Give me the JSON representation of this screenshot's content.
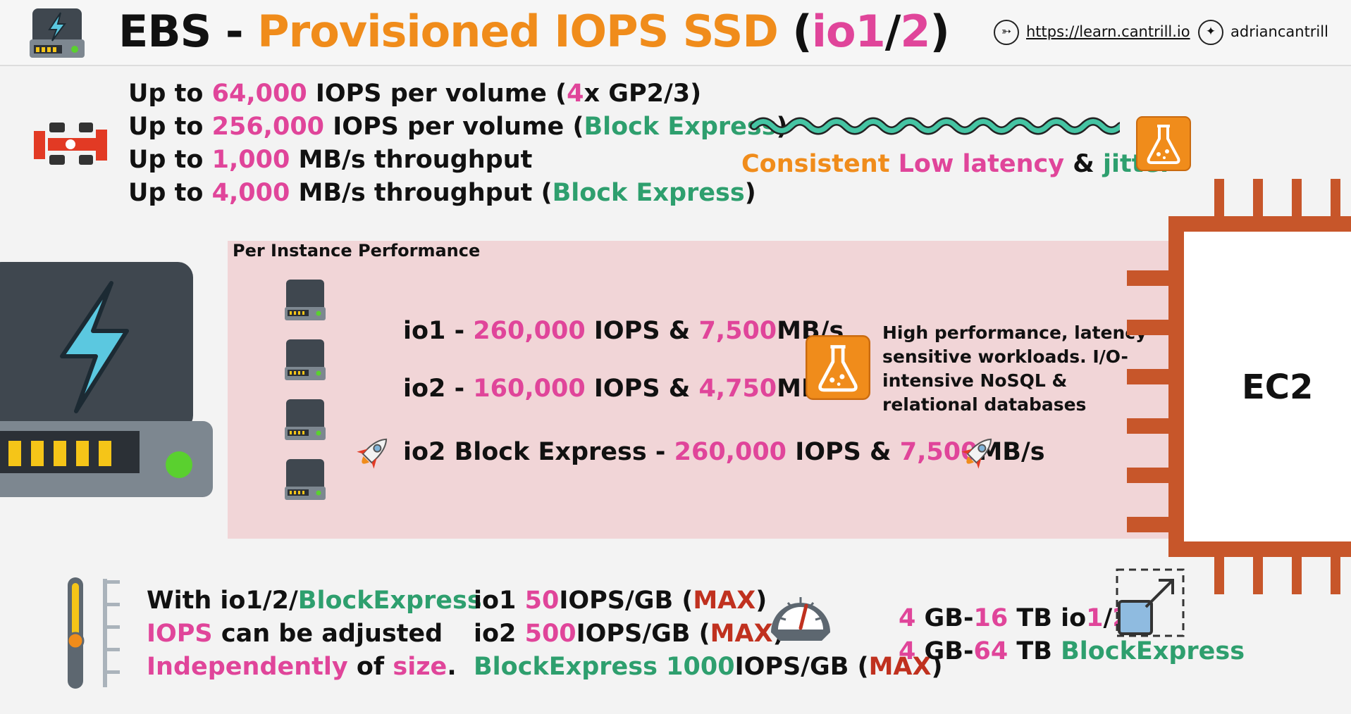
{
  "header": {
    "title": {
      "ebs": "EBS",
      "dash": " - ",
      "main": "Provisioned IOPS SSD",
      "open": " (",
      "io": "io",
      "one": "1",
      "slash": "/",
      "two": "2",
      "close": ")"
    },
    "website": "https://learn.cantrill.io",
    "twitter": "adriancantrill"
  },
  "specs": [
    {
      "a": "Up to ",
      "b": "64,000",
      "c": " IOPS per volume (",
      "d": "4",
      "e": "x GP2/3)"
    },
    {
      "a": "Up to ",
      "b": "256,000",
      "c": " IOPS per volume (",
      "d": "Block Express",
      "e": ")"
    },
    {
      "a": "Up to ",
      "b": "1,000",
      "c": " MB/s throughput",
      "d": "",
      "e": ""
    },
    {
      "a": "Up to ",
      "b": "4,000",
      "c": " MB/s throughput (",
      "d": "Block Express",
      "e": ")"
    }
  ],
  "latency": {
    "a": "Consistent ",
    "b": "Low latency",
    "c": " & ",
    "d": "jitter"
  },
  "panel": {
    "title": "Per Instance Performance",
    "io1": {
      "name": "io1 - ",
      "iops": "260,000",
      "mid": " IOPS & ",
      "mbs": "7,500",
      "unit": "MB/s"
    },
    "io2": {
      "name": "io2 - ",
      "iops": "160,000",
      "mid": " IOPS & ",
      "mbs": "4,750",
      "unit": "MB/s"
    },
    "io2be": {
      "name": "io2 Block Express - ",
      "iops": "260,000",
      "mid": " IOPS & ",
      "mbs": "7,500",
      "unit": "MB/s"
    },
    "description": [
      "High performance, latency",
      "sensitive workloads. I/O-",
      "intensive NoSQL &",
      "relational databases"
    ]
  },
  "ec2_label": "EC2",
  "adjust": {
    "l1a": "With io1/2/",
    "l1b": "BlockExpress",
    "l2a": "IOPS",
    "l2b": " can be adjusted",
    "l3a": "Independently",
    "l3b": " of ",
    "l3c": "size",
    "l3d": "."
  },
  "ratios": [
    {
      "name": "io1 ",
      "num": "50",
      "unit": "IOPS/GB (",
      "max": "MAX",
      "end": ")"
    },
    {
      "name": "io2 ",
      "num": "500",
      "unit": "IOPS/GB (",
      "max": "MAX",
      "end": ")"
    },
    {
      "name": "BlockExpress ",
      "num": "1000",
      "unit": "IOPS/GB (",
      "max": "MAX",
      "end": ")"
    }
  ],
  "sizes": [
    {
      "a": "4",
      "b": " GB-",
      "c": "16",
      "d": " TB io",
      "e": "1",
      "f": "/",
      "g": "2"
    },
    {
      "a": "4",
      "b": " GB-",
      "c": "64",
      "d": " TB ",
      "e": "BlockExpress",
      "f": "",
      "g": ""
    }
  ],
  "icons": [
    "ebs-drive-icon",
    "compass-icon",
    "twitter-icon",
    "race-car-icon",
    "wave-icon",
    "flask-icon",
    "rocket-icon",
    "slider-icon",
    "gauge-icon",
    "resize-icon"
  ],
  "colors": {
    "pink": "#e0459a",
    "orange": "#f08c1b",
    "green": "#2e9f6e",
    "red": "#c0311f",
    "ec2": "#c7562a",
    "panel": "#f1d5d7"
  }
}
